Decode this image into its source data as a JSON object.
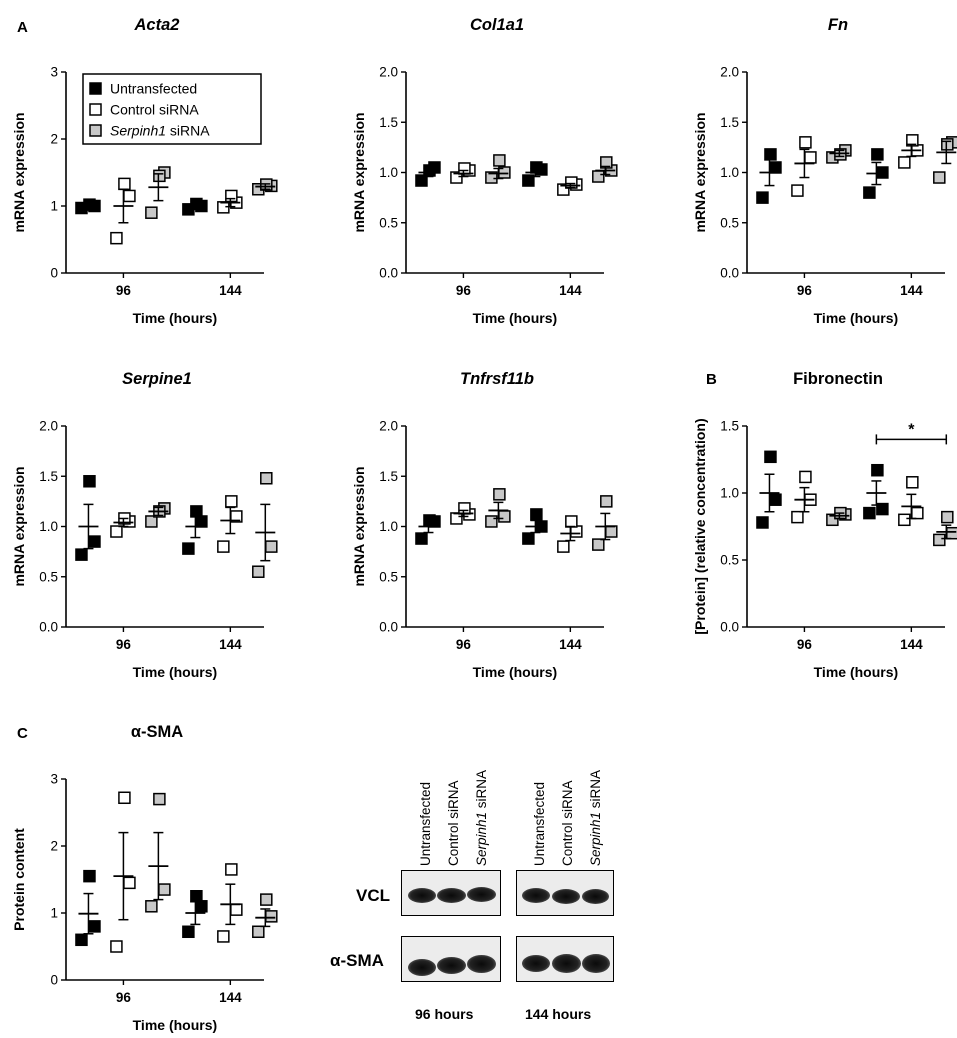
{
  "panel_letters": [
    "A",
    "B",
    "C"
  ],
  "legend": [
    {
      "label": "Untransfected",
      "style": "filled"
    },
    {
      "label": "Control siRNA",
      "style": "open"
    },
    {
      "label": "Serpinh1 siRNA",
      "style": "grey",
      "italic_part": "Serpinh1",
      "rest": " siRNA"
    }
  ],
  "colors": {
    "filled": "#000000",
    "open": "#ffffff",
    "grey": "#c8c8c8",
    "blot_bg": "#ececec"
  },
  "chart_data": [
    {
      "id": "acta2",
      "type": "scatter",
      "title": "Acta2",
      "title_italic": true,
      "panel": "A",
      "xlabel": "Time (hours)",
      "ylabel": "mRNA expression",
      "ylim": [
        0,
        3
      ],
      "yticks": [
        "0",
        "1",
        "2",
        "3"
      ],
      "xticks": [
        "96",
        "144"
      ],
      "groups": [
        {
          "time": "96",
          "series": [
            {
              "name": "Untransfected",
              "points": [
                0.97,
                1.0,
                1.02
              ],
              "mean": 1.0,
              "sem": 0.02
            },
            {
              "name": "Control siRNA",
              "points": [
                0.52,
                1.15,
                1.33
              ],
              "mean": 1.0,
              "sem": 0.25
            },
            {
              "name": "Serpinh1 siRNA",
              "points": [
                0.9,
                1.5,
                1.45
              ],
              "mean": 1.28,
              "sem": 0.2
            }
          ]
        },
        {
          "time": "144",
          "series": [
            {
              "name": "Untransfected",
              "points": [
                0.95,
                1.0,
                1.03
              ],
              "mean": 0.99,
              "sem": 0.03
            },
            {
              "name": "Control siRNA",
              "points": [
                0.98,
                1.05,
                1.15
              ],
              "mean": 1.05,
              "sem": 0.06
            },
            {
              "name": "Serpinh1 siRNA",
              "points": [
                1.25,
                1.3,
                1.32
              ],
              "mean": 1.29,
              "sem": 0.04
            }
          ]
        }
      ]
    },
    {
      "id": "col1a1",
      "type": "scatter",
      "title": "Col1a1",
      "title_italic": true,
      "xlabel": "Time (hours)",
      "ylabel": "mRNA expression",
      "ylim": [
        0,
        2
      ],
      "yticks": [
        "0.0",
        "0.5",
        "1.0",
        "1.5",
        "2.0"
      ],
      "xticks": [
        "96",
        "144"
      ],
      "groups": [
        {
          "time": "96",
          "series": [
            {
              "name": "Untransfected",
              "points": [
                0.92,
                1.05,
                1.02
              ],
              "mean": 1.0,
              "sem": 0.04
            },
            {
              "name": "Control siRNA",
              "points": [
                0.95,
                1.02,
                1.04
              ],
              "mean": 0.99,
              "sem": 0.03
            },
            {
              "name": "Serpinh1 siRNA",
              "points": [
                0.95,
                1.0,
                1.12
              ],
              "mean": 0.99,
              "sem": 0.05
            }
          ]
        },
        {
          "time": "144",
          "series": [
            {
              "name": "Untransfected",
              "points": [
                0.92,
                1.03,
                1.05
              ],
              "mean": 1.0,
              "sem": 0.04
            },
            {
              "name": "Control siRNA",
              "points": [
                0.83,
                0.88,
                0.9
              ],
              "mean": 0.87,
              "sem": 0.02
            },
            {
              "name": "Serpinh1 siRNA",
              "points": [
                0.96,
                1.02,
                1.1
              ],
              "mean": 1.02,
              "sem": 0.04
            }
          ]
        }
      ]
    },
    {
      "id": "fn",
      "type": "scatter",
      "title": "Fn",
      "title_italic": true,
      "xlabel": "Time (hours)",
      "ylabel": "mRNA expression",
      "ylim": [
        0,
        2
      ],
      "yticks": [
        "0.0",
        "0.5",
        "1.0",
        "1.5",
        "2.0"
      ],
      "xticks": [
        "96",
        "144"
      ],
      "groups": [
        {
          "time": "96",
          "series": [
            {
              "name": "Untransfected",
              "points": [
                0.75,
                1.05,
                1.18
              ],
              "mean": 1.0,
              "sem": 0.13
            },
            {
              "name": "Control siRNA",
              "points": [
                0.82,
                1.15,
                1.3
              ],
              "mean": 1.09,
              "sem": 0.14
            },
            {
              "name": "Serpinh1 siRNA",
              "points": [
                1.15,
                1.22,
                1.18
              ],
              "mean": 1.19,
              "sem": 0.03
            }
          ]
        },
        {
          "time": "144",
          "series": [
            {
              "name": "Untransfected",
              "points": [
                0.8,
                1.0,
                1.18
              ],
              "mean": 0.99,
              "sem": 0.11
            },
            {
              "name": "Control siRNA",
              "points": [
                1.1,
                1.22,
                1.32
              ],
              "mean": 1.22,
              "sem": 0.06
            },
            {
              "name": "Serpinh1 siRNA",
              "points": [
                0.95,
                1.3,
                1.28
              ],
              "mean": 1.2,
              "sem": 0.11
            }
          ]
        }
      ]
    },
    {
      "id": "serpine1",
      "type": "scatter",
      "title": "Serpine1",
      "title_italic": true,
      "xlabel": "Time (hours)",
      "ylabel": "mRNA expression",
      "ylim": [
        0,
        2
      ],
      "yticks": [
        "0.0",
        "0.5",
        "1.0",
        "1.5",
        "2.0"
      ],
      "xticks": [
        "96",
        "144"
      ],
      "groups": [
        {
          "time": "96",
          "series": [
            {
              "name": "Untransfected",
              "points": [
                0.72,
                0.85,
                1.45
              ],
              "mean": 1.0,
              "sem": 0.22
            },
            {
              "name": "Control siRNA",
              "points": [
                0.95,
                1.05,
                1.08
              ],
              "mean": 1.04,
              "sem": 0.04
            },
            {
              "name": "Serpinh1 siRNA",
              "points": [
                1.05,
                1.18,
                1.15
              ],
              "mean": 1.15,
              "sem": 0.04
            }
          ]
        },
        {
          "time": "144",
          "series": [
            {
              "name": "Untransfected",
              "points": [
                0.78,
                1.05,
                1.15
              ],
              "mean": 1.0,
              "sem": 0.11
            },
            {
              "name": "Control siRNA",
              "points": [
                0.8,
                1.1,
                1.25
              ],
              "mean": 1.06,
              "sem": 0.13
            },
            {
              "name": "Serpinh1 siRNA",
              "points": [
                0.55,
                0.8,
                1.48
              ],
              "mean": 0.94,
              "sem": 0.28
            }
          ]
        }
      ]
    },
    {
      "id": "tnfrsf11b",
      "type": "scatter",
      "title": "Tnfrsf11b",
      "title_italic": true,
      "xlabel": "Time (hours)",
      "ylabel": "mRNA expression",
      "ylim": [
        0,
        2
      ],
      "yticks": [
        "0.0",
        "0.5",
        "1.0",
        "1.5",
        "2.0"
      ],
      "xticks": [
        "96",
        "144"
      ],
      "groups": [
        {
          "time": "96",
          "series": [
            {
              "name": "Untransfected",
              "points": [
                0.88,
                1.05,
                1.06
              ],
              "mean": 1.0,
              "sem": 0.06
            },
            {
              "name": "Control siRNA",
              "points": [
                1.08,
                1.12,
                1.18
              ],
              "mean": 1.13,
              "sem": 0.03
            },
            {
              "name": "Serpinh1 siRNA",
              "points": [
                1.05,
                1.1,
                1.32
              ],
              "mean": 1.16,
              "sem": 0.08
            }
          ]
        },
        {
          "time": "144",
          "series": [
            {
              "name": "Untransfected",
              "points": [
                0.88,
                1.0,
                1.12
              ],
              "mean": 1.0,
              "sem": 0.06
            },
            {
              "name": "Control siRNA",
              "points": [
                0.8,
                0.95,
                1.05
              ],
              "mean": 0.93,
              "sem": 0.07
            },
            {
              "name": "Serpinh1 siRNA",
              "points": [
                0.82,
                0.95,
                1.25
              ],
              "mean": 1.0,
              "sem": 0.13
            }
          ]
        }
      ]
    },
    {
      "id": "fibronectin",
      "type": "scatter",
      "title": "Fibronectin",
      "title_italic": false,
      "panel": "B",
      "xlabel": "Time (hours)",
      "ylabel": "[Protein] (relative concentration)",
      "ylim": [
        0,
        1.5
      ],
      "yticks": [
        "0.0",
        "0.5",
        "1.0",
        "1.5"
      ],
      "xticks": [
        "96",
        "144"
      ],
      "significance": {
        "label": "*",
        "time": "144",
        "from": "Untransfected",
        "to": "Serpinh1 siRNA",
        "y": 1.4
      },
      "groups": [
        {
          "time": "96",
          "series": [
            {
              "name": "Untransfected",
              "points": [
                0.78,
                0.95,
                1.27
              ],
              "mean": 1.0,
              "sem": 0.14
            },
            {
              "name": "Control siRNA",
              "points": [
                0.82,
                0.95,
                1.12
              ],
              "mean": 0.95,
              "sem": 0.09
            },
            {
              "name": "Serpinh1 siRNA",
              "points": [
                0.8,
                0.84,
                0.85
              ],
              "mean": 0.83,
              "sem": 0.02
            }
          ]
        },
        {
          "time": "144",
          "series": [
            {
              "name": "Untransfected",
              "points": [
                0.85,
                0.88,
                1.17
              ],
              "mean": 1.0,
              "sem": 0.09
            },
            {
              "name": "Control siRNA",
              "points": [
                0.8,
                0.85,
                1.08
              ],
              "mean": 0.9,
              "sem": 0.09
            },
            {
              "name": "Serpinh1 siRNA",
              "points": [
                0.65,
                0.7,
                0.82
              ],
              "mean": 0.71,
              "sem": 0.05
            }
          ]
        }
      ]
    },
    {
      "id": "asma",
      "type": "scatter",
      "title": "α-SMA",
      "title_italic": false,
      "panel": "C",
      "xlabel": "Time (hours)",
      "ylabel": "Protein content",
      "ylim": [
        0,
        3
      ],
      "yticks": [
        "0",
        "1",
        "2",
        "3"
      ],
      "xticks": [
        "96",
        "144"
      ],
      "groups": [
        {
          "time": "96",
          "series": [
            {
              "name": "Untransfected",
              "points": [
                0.6,
                0.8,
                1.55
              ],
              "mean": 0.99,
              "sem": 0.3
            },
            {
              "name": "Control siRNA",
              "points": [
                0.5,
                1.45,
                2.72
              ],
              "mean": 1.55,
              "sem": 0.65
            },
            {
              "name": "Serpinh1 siRNA",
              "points": [
                1.1,
                1.35,
                2.7
              ],
              "mean": 1.7,
              "sem": 0.5
            }
          ]
        },
        {
          "time": "144",
          "series": [
            {
              "name": "Untransfected",
              "points": [
                0.72,
                1.1,
                1.25
              ],
              "mean": 1.0,
              "sem": 0.17
            },
            {
              "name": "Control siRNA",
              "points": [
                0.65,
                1.05,
                1.65
              ],
              "mean": 1.13,
              "sem": 0.3
            },
            {
              "name": "Serpinh1 siRNA",
              "points": [
                0.72,
                0.95,
                1.2
              ],
              "mean": 0.93,
              "sem": 0.13
            }
          ]
        }
      ]
    }
  ],
  "blot": {
    "lane_labels": [
      "Untransfected",
      "Control siRNA",
      "Serpinh1 siRNA"
    ],
    "rows": [
      "VCL",
      "α-SMA"
    ],
    "timepoints": [
      "96 hours",
      "144 hours"
    ]
  }
}
